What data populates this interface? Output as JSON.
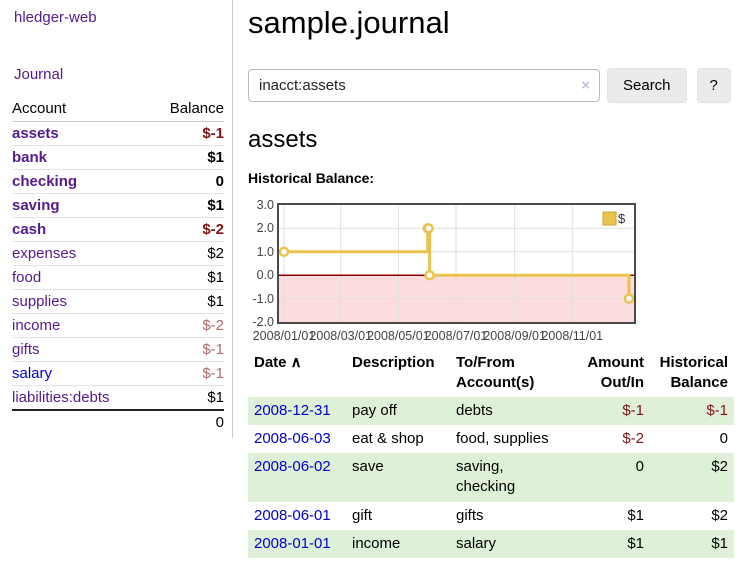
{
  "app": {
    "brand": "hledger-web",
    "nav_journal": "Journal"
  },
  "colors": {
    "purple": "#551a8b",
    "link_blue": "#0000cc",
    "negative": "#801414",
    "negative_soft": "#b36b6b",
    "stripe": "#dff0d8",
    "chart_border": "#4a4a4a",
    "grid": "#e0e0e0"
  },
  "sidebar": {
    "header": {
      "account": "Account",
      "balance": "Balance"
    },
    "accounts": [
      {
        "name": "assets",
        "depth": 1,
        "bold": true,
        "color": "purple",
        "balance": "$-1",
        "balance_tone": "neg"
      },
      {
        "name": "bank",
        "depth": 2,
        "bold": true,
        "color": "purple",
        "balance": "$1",
        "balance_tone": ""
      },
      {
        "name": "checking",
        "depth": 3,
        "bold": true,
        "color": "purple",
        "balance": "0",
        "balance_tone": ""
      },
      {
        "name": "saving",
        "depth": 3,
        "bold": true,
        "color": "purple",
        "balance": "$1",
        "balance_tone": ""
      },
      {
        "name": "cash",
        "depth": 2,
        "bold": true,
        "color": "purple",
        "balance": "$-2",
        "balance_tone": "neg"
      },
      {
        "name": "expenses",
        "depth": 1,
        "bold": false,
        "color": "purple",
        "balance": "$2",
        "balance_tone": ""
      },
      {
        "name": "food",
        "depth": 2,
        "bold": false,
        "color": "purple",
        "balance": "$1",
        "balance_tone": ""
      },
      {
        "name": "supplies",
        "depth": 2,
        "bold": false,
        "color": "purple",
        "balance": "$1",
        "balance_tone": ""
      },
      {
        "name": "income",
        "depth": 1,
        "bold": false,
        "color": "purple",
        "balance": "$-2",
        "balance_tone": "soft"
      },
      {
        "name": "gifts",
        "depth": 2,
        "bold": false,
        "color": "purple",
        "balance": "$-1",
        "balance_tone": "soft"
      },
      {
        "name": "salary",
        "depth": 2,
        "bold": false,
        "color": "blue",
        "balance": "$-1",
        "balance_tone": "soft"
      },
      {
        "name": "liabilities:debts",
        "depth": 1,
        "bold": false,
        "color": "purple",
        "balance": "$1",
        "balance_tone": ""
      }
    ],
    "total": "0"
  },
  "header": {
    "title": "sample.journal"
  },
  "search": {
    "value": "inacct:assets",
    "clear_icon": "×",
    "button_label": "Search",
    "help_label": "?"
  },
  "account_page": {
    "heading": "assets",
    "chart_label": "Historical Balance:"
  },
  "chart_data": {
    "type": "line",
    "title": "Historical Balance",
    "step": true,
    "series": [
      {
        "name": "$",
        "color": "#e9c34d",
        "points": [
          [
            "2008-01-01",
            1
          ],
          [
            "2008-06-01",
            2
          ],
          [
            "2008-06-02",
            2
          ],
          [
            "2008-06-03",
            0
          ],
          [
            "2008-12-31",
            -1
          ]
        ]
      }
    ],
    "xlim": [
      "2008-01-01",
      "2008-12-31"
    ],
    "ylim": [
      -2,
      3
    ],
    "x_ticks": [
      "2008/01/01",
      "2008/03/01",
      "2008/05/01",
      "2008/07/01",
      "2008/09/01",
      "2008/11/01"
    ],
    "y_ticks": [
      3.0,
      2.0,
      1.0,
      0.0,
      -1.0,
      -2.0
    ],
    "grid": true,
    "negative_region_fill": "#fcdcdc",
    "zero_line_color": "#8b0000",
    "legend": {
      "label": "$",
      "position": "top-right"
    }
  },
  "transactions": {
    "sort_icon": "∧",
    "columns": [
      {
        "line1": "Date",
        "line2": "",
        "sortable": true
      },
      {
        "line1": "Description",
        "line2": ""
      },
      {
        "line1": "To/From",
        "line2": "Account(s)"
      },
      {
        "line1": "Amount",
        "line2": "Out/In",
        "align": "r"
      },
      {
        "line1": "Historical",
        "line2": "Balance",
        "align": "r"
      }
    ],
    "rows": [
      {
        "date": "2008-12-31",
        "description": "pay off",
        "accounts": "debts",
        "amount": "$-1",
        "amount_tone": "neg",
        "balance": "$-1",
        "balance_tone": "neg"
      },
      {
        "date": "2008-06-03",
        "description": "eat & shop",
        "accounts": "food, supplies",
        "amount": "$-2",
        "amount_tone": "neg",
        "balance": "0",
        "balance_tone": ""
      },
      {
        "date": "2008-06-02",
        "description": "save",
        "accounts": "saving, checking",
        "amount": "0",
        "amount_tone": "",
        "balance": "$2",
        "balance_tone": ""
      },
      {
        "date": "2008-06-01",
        "description": "gift",
        "accounts": "gifts",
        "amount": "$1",
        "amount_tone": "",
        "balance": "$2",
        "balance_tone": ""
      },
      {
        "date": "2008-01-01",
        "description": "income",
        "accounts": "salary",
        "amount": "$1",
        "amount_tone": "",
        "balance": "$1",
        "balance_tone": ""
      }
    ]
  }
}
